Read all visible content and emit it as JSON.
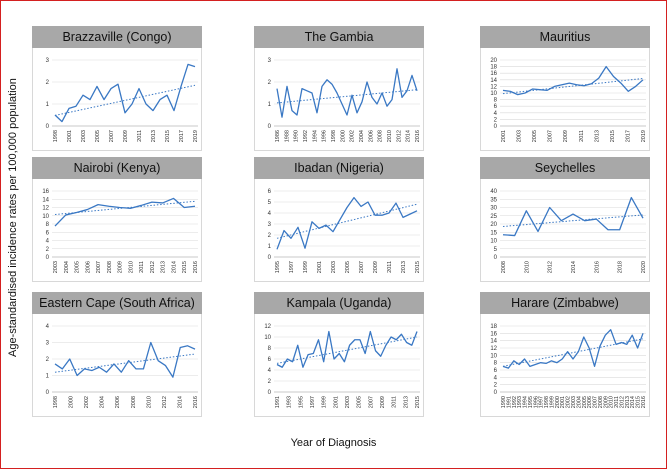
{
  "y_axis_label": "Age-standardised incidence rates per 100,000 population",
  "x_axis_label": "Year of Diagnosis",
  "colors": {
    "series": "#3a78c4",
    "title_bar": "#a8a8a8",
    "frame_border": "#d42020"
  },
  "chart_data": [
    {
      "type": "line",
      "title": "Brazzaville (Congo)",
      "ylim": [
        0,
        3
      ],
      "yticks": [
        0,
        1,
        2,
        3
      ],
      "x_tick_labels": [
        "1998",
        "2001",
        "2003",
        "2005",
        "2007",
        "2009",
        "2011",
        "2013",
        "2015",
        "2017",
        "2019"
      ],
      "values": [
        0.5,
        0.2,
        0.8,
        0.9,
        1.4,
        1.2,
        1.8,
        1.2,
        1.7,
        1.9,
        0.6,
        1.0,
        1.7,
        1.0,
        0.7,
        1.2,
        1.4,
        0.7,
        1.8,
        2.8,
        2.7
      ],
      "trend": [
        0.48,
        1.85
      ],
      "grid": true
    },
    {
      "type": "line",
      "title": "The Gambia",
      "ylim": [
        0,
        3
      ],
      "yticks": [
        0,
        1,
        2,
        3
      ],
      "x_tick_labels": [
        "1986",
        "1988",
        "1990",
        "1992",
        "1994",
        "1996",
        "1998",
        "2000",
        "2002",
        "2004",
        "2006",
        "2008",
        "2010",
        "2012",
        "2014",
        "2016"
      ],
      "values": [
        1.7,
        0.4,
        1.8,
        0.7,
        0.5,
        1.7,
        1.6,
        1.5,
        0.6,
        1.8,
        2.1,
        1.9,
        1.5,
        1.0,
        0.5,
        1.4,
        0.6,
        1.1,
        2.0,
        1.3,
        1.0,
        1.5,
        0.9,
        1.2,
        2.6,
        1.3,
        1.6,
        2.3,
        1.6
      ],
      "trend": [
        1.05,
        1.65
      ],
      "grid": true
    },
    {
      "type": "line",
      "title": "Mauritius",
      "ylim": [
        0,
        20
      ],
      "yticks": [
        0,
        2,
        4,
        6,
        8,
        10,
        12,
        14,
        16,
        18,
        20
      ],
      "x_tick_labels": [
        "2001",
        "2003",
        "2005",
        "2007",
        "2009",
        "2011",
        "2013",
        "2015",
        "2017",
        "2019"
      ],
      "values": [
        10.8,
        10.5,
        9.5,
        10.0,
        11.2,
        11.0,
        10.8,
        12.0,
        12.5,
        13.0,
        12.5,
        12.2,
        12.8,
        14.5,
        18.0,
        15.0,
        13.0,
        10.5,
        12.0,
        14.0
      ],
      "trend": [
        9.8,
        14.4
      ],
      "grid": true
    },
    {
      "type": "line",
      "title": "Nairobi (Kenya)",
      "ylim": [
        0,
        16
      ],
      "yticks": [
        0,
        2,
        4,
        6,
        8,
        10,
        12,
        14,
        16
      ],
      "x_tick_labels": [
        "2003",
        "2004",
        "2005",
        "2006",
        "2007",
        "2008",
        "2009",
        "2010",
        "2011",
        "2012",
        "2013",
        "2014",
        "2015",
        "2016"
      ],
      "values": [
        7.5,
        10.2,
        10.8,
        11.5,
        12.7,
        12.3,
        12.0,
        11.8,
        12.5,
        13.3,
        13.1,
        14.2,
        12.0,
        12.3
      ],
      "trend": [
        10.3,
        13.5
      ],
      "grid": true
    },
    {
      "type": "line",
      "title": "Ibadan (Nigeria)",
      "ylim": [
        0,
        6
      ],
      "yticks": [
        0,
        1,
        2,
        3,
        4,
        5,
        6
      ],
      "x_tick_labels": [
        "1995",
        "1997",
        "1999",
        "2001",
        "2003",
        "2005",
        "2007",
        "2009",
        "2011",
        "2013",
        "2015"
      ],
      "values": [
        0.7,
        2.4,
        1.7,
        2.7,
        0.8,
        3.2,
        2.6,
        2.9,
        2.3,
        3.4,
        4.5,
        5.4,
        4.6,
        5.0,
        3.8,
        3.8,
        4.0,
        4.9,
        3.6,
        3.9,
        4.2
      ],
      "trend": [
        1.7,
        4.8
      ],
      "grid": true
    },
    {
      "type": "line",
      "title": "Seychelles",
      "ylim": [
        0,
        40
      ],
      "yticks": [
        0,
        5,
        10,
        15,
        20,
        25,
        30,
        35,
        40
      ],
      "x_tick_labels": [
        "2008",
        "2010",
        "2012",
        "2014",
        "2016",
        "2018",
        "2020"
      ],
      "values": [
        13.5,
        13.0,
        28.0,
        15.5,
        30.0,
        22.0,
        26.0,
        22.0,
        23.0,
        16.5,
        16.5,
        36.0,
        23.5
      ],
      "trend": [
        18.5,
        25.5
      ],
      "grid": true
    },
    {
      "type": "line",
      "title": "Eastern Cape (South Africa)",
      "ylim": [
        0,
        4
      ],
      "yticks": [
        0,
        1,
        2,
        3,
        4
      ],
      "x_tick_labels": [
        "1998",
        "2000",
        "2002",
        "2004",
        "2006",
        "2008",
        "2010",
        "2012",
        "2014",
        "2016"
      ],
      "values": [
        1.7,
        1.4,
        2.0,
        1.0,
        1.4,
        1.3,
        1.5,
        1.2,
        1.7,
        1.2,
        1.9,
        1.4,
        1.4,
        3.0,
        1.9,
        1.6,
        0.9,
        2.7,
        2.8,
        2.6
      ],
      "trend": [
        1.2,
        2.3
      ],
      "grid": true
    },
    {
      "type": "line",
      "title": "Kampala (Uganda)",
      "ylim": [
        0,
        12
      ],
      "yticks": [
        0,
        2,
        4,
        6,
        8,
        10,
        12
      ],
      "x_tick_labels": [
        "1991",
        "1993",
        "1995",
        "1997",
        "1999",
        "2001",
        "2003",
        "2005",
        "2007",
        "2009",
        "2011",
        "2013",
        "2015"
      ],
      "values": [
        5.0,
        4.5,
        6.0,
        5.5,
        8.5,
        4.5,
        6.8,
        7.0,
        9.5,
        5.5,
        11.0,
        6.0,
        7.0,
        5.5,
        8.5,
        9.5,
        9.5,
        7.0,
        11.0,
        7.5,
        6.5,
        8.5,
        10.0,
        9.5,
        10.5,
        9.0,
        8.5,
        11.0
      ],
      "trend": [
        5.2,
        10.0
      ],
      "grid": true
    },
    {
      "type": "line",
      "title": "Harare (Zimbabwe)",
      "ylim": [
        0,
        18
      ],
      "yticks": [
        0,
        2,
        4,
        6,
        8,
        10,
        12,
        14,
        16,
        18
      ],
      "x_tick_labels": [
        "1990",
        "1991",
        "1992",
        "1993",
        "1994",
        "1995",
        "1996",
        "1997",
        "1998",
        "1999",
        "2000",
        "2001",
        "2002",
        "2003",
        "2004",
        "2005",
        "2006",
        "2007",
        "2008",
        "2009",
        "2010",
        "2011",
        "2012",
        "2013",
        "2014",
        "2015",
        "2016"
      ],
      "values": [
        7.0,
        6.5,
        8.5,
        7.5,
        9.0,
        7.0,
        7.5,
        8.0,
        7.8,
        8.5,
        8.0,
        9.0,
        11.0,
        9.0,
        11.0,
        15.0,
        12.0,
        7.0,
        12.5,
        15.5,
        17.0,
        13.0,
        13.5,
        13.0,
        15.5,
        12.0,
        16.0
      ],
      "trend": [
        7.0,
        14.5
      ],
      "grid": true
    }
  ]
}
